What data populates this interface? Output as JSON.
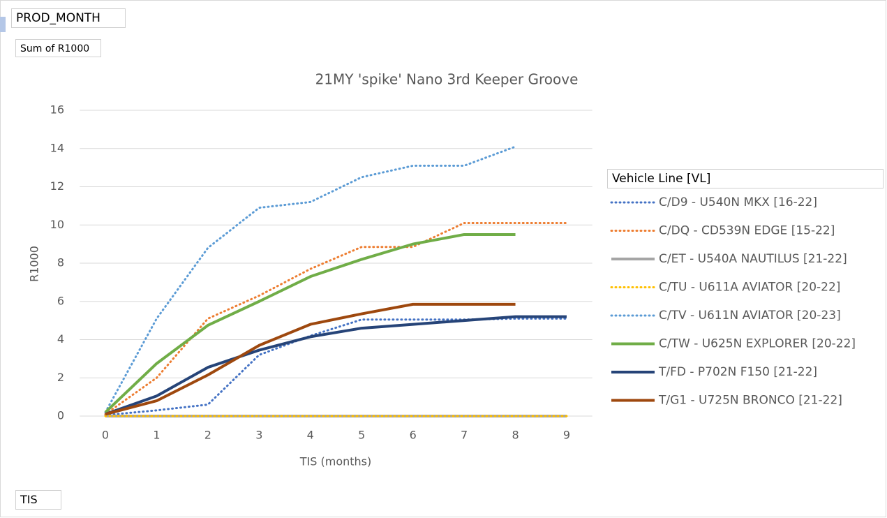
{
  "field_buttons": {
    "filter": "PROD_MONTH",
    "values": "Sum of R1000",
    "axis": "TIS",
    "legend": "Vehicle Line [VL]"
  },
  "chart_data": {
    "type": "line",
    "title": "21MY 'spike' Nano 3rd Keeper Groove",
    "x_label": "TIS (months)",
    "y_label": "R1000",
    "x": [
      0,
      1,
      2,
      3,
      4,
      5,
      6,
      7,
      8,
      9
    ],
    "xlim": [
      -0.5,
      9.5
    ],
    "xticks": [
      0,
      1,
      2,
      3,
      4,
      5,
      6,
      7,
      8,
      9
    ],
    "ylim": [
      0,
      16
    ],
    "yticks": [
      0,
      2,
      4,
      6,
      8,
      10,
      12,
      14,
      16
    ],
    "grid": true,
    "legend": "right",
    "series": [
      {
        "name": "C/D9 - U540N MKX [16-22]",
        "color": "#4472c4",
        "style": "dotted",
        "values": [
          0.05,
          0.3,
          0.6,
          3.2,
          4.2,
          5.05,
          5.05,
          5.05,
          5.1,
          5.1
        ]
      },
      {
        "name": "C/DQ - CD539N EDGE [15-22]",
        "color": "#ed7d31",
        "style": "dotted",
        "values": [
          0.1,
          2.0,
          5.1,
          6.3,
          7.7,
          8.85,
          8.85,
          10.1,
          10.1,
          10.1
        ]
      },
      {
        "name": "C/ET - U540A NAUTILUS [21-22]",
        "color": "#a5a5a5",
        "style": "solid",
        "values": [
          0,
          0,
          0,
          0,
          0,
          0,
          0,
          0,
          0,
          0
        ]
      },
      {
        "name": "C/TU - U611A AVIATOR [20-22]",
        "color": "#ffc000",
        "style": "dotted",
        "values": [
          0,
          0,
          0,
          0,
          0,
          0,
          0,
          0,
          0,
          0
        ]
      },
      {
        "name": "C/TV - U611N AVIATOR [20-23]",
        "color": "#5b9bd5",
        "style": "dotted",
        "values": [
          0.2,
          5.1,
          8.8,
          10.9,
          11.2,
          12.5,
          13.1,
          13.1,
          14.1,
          null
        ]
      },
      {
        "name": "C/TW - U625N EXPLORER [20-22]",
        "color": "#70ad47",
        "style": "solid",
        "values": [
          0.2,
          2.75,
          4.75,
          6.0,
          7.3,
          8.2,
          9.0,
          9.5,
          9.5,
          null
        ]
      },
      {
        "name": "T/FD - P702N F150 [21-22]",
        "color": "#264478",
        "style": "solid",
        "values": [
          0.1,
          1.05,
          2.55,
          3.45,
          4.15,
          4.6,
          4.8,
          5.0,
          5.2,
          5.2
        ]
      },
      {
        "name": "T/G1 - U725N BRONCO [21-22]",
        "color": "#9e480e",
        "style": "solid",
        "values": [
          0.1,
          0.8,
          2.15,
          3.7,
          4.8,
          5.35,
          5.85,
          5.85,
          5.85,
          null
        ]
      }
    ]
  }
}
